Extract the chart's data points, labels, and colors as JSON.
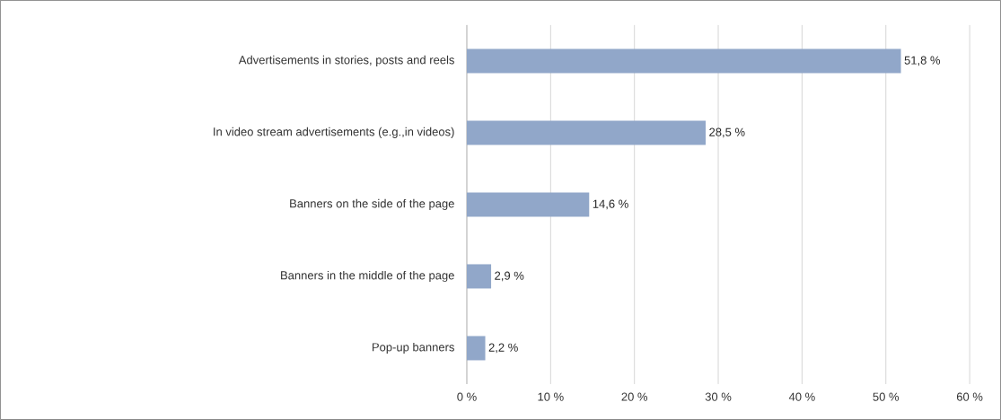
{
  "chart_data": {
    "type": "bar",
    "orientation": "horizontal",
    "categories": [
      "Advertisements in stories, posts and reels",
      "In video stream advertisements (e.g.,in videos)",
      "Banners on the side of the page",
      "Banners in the middle of the page",
      "Pop-up banners"
    ],
    "values": [
      51.8,
      28.5,
      14.6,
      2.9,
      2.2
    ],
    "value_labels": [
      "51,8 %",
      "28,5 %",
      "14,6 %",
      "2,9 %",
      "2,2 %"
    ],
    "color": "#91a7c9",
    "xlim": [
      0,
      60
    ],
    "xticks": [
      {
        "value": 0,
        "label": "0 %"
      },
      {
        "value": 10,
        "label": "10 %"
      },
      {
        "value": 20,
        "label": "20 %"
      },
      {
        "value": 30,
        "label": "30 %"
      },
      {
        "value": 40,
        "label": "40 %"
      },
      {
        "value": 50,
        "label": "50 %"
      },
      {
        "value": 60,
        "label": "60 %"
      }
    ],
    "grid": "x"
  }
}
